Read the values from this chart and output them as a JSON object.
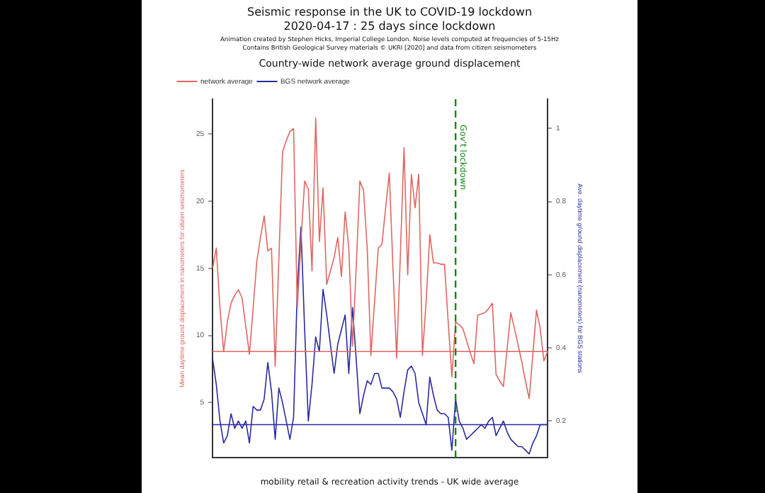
{
  "chart_data": {
    "type": "line",
    "title": "Seismic response in the UK to COVID-19 lockdown",
    "subtitle": "2020-04-17 : 25 days since lockdown",
    "annotations": [
      "Animation created by Stephen Hicks, Imperial College London. Noise levels computed at frequencies of 5-15Hz",
      "Contains British Geological Survey materials © UKRI [2020] and data from citizen seismometers",
      "Country-wide network average ground displacement",
      "mobility retail & recreation activity trends - UK wide average"
    ],
    "ylabel": "Mean daytime ground displacement in nanometers for citizen seismometers",
    "y2label": "Ave. daytime ground displacement (nanometers) for BGS stations",
    "categories": [
      null,
      null,
      null,
      null,
      null,
      null,
      null,
      null,
      null,
      null,
      null,
      null,
      null,
      null,
      null,
      null,
      null,
      null,
      null,
      null,
      null,
      null,
      null,
      null,
      null,
      null,
      null,
      null,
      null,
      null,
      null,
      null,
      null,
      null,
      null,
      null,
      null,
      null,
      null,
      null,
      null,
      null,
      null,
      null,
      null,
      null,
      null,
      null,
      null,
      null,
      null,
      null,
      null,
      null,
      null,
      null,
      null,
      null,
      null,
      null,
      null,
      null,
      null,
      null,
      null,
      null,
      null,
      null,
      null,
      null,
      null,
      null,
      null,
      null,
      null,
      null,
      null,
      null,
      null,
      null,
      null,
      null,
      null,
      null,
      null,
      null,
      null,
      null,
      null,
      null,
      null,
      null
    ],
    "ylim": [
      0.9,
      27.6
    ],
    "yticks": [
      5,
      10,
      15,
      20,
      25
    ],
    "y2lim": [
      0.1,
      1.08
    ],
    "y2ticks": [
      0.2,
      0.4,
      0.6,
      0.8,
      1.0
    ],
    "legend": "top left",
    "marker": "none",
    "line_style": "solid",
    "series": [
      {
        "name": "network average",
        "color": "#e06660",
        "values": [
          15,
          16.5,
          12,
          8.8,
          11,
          12.4,
          13,
          13.4,
          12.8,
          10.7,
          8.6,
          12,
          15.5,
          17.3,
          18.9,
          16.3,
          16.5,
          7.7,
          15.7,
          23.7,
          24.5,
          25.2,
          25.4,
          12,
          17,
          21.5,
          20.9,
          14.8,
          26.2,
          17,
          21,
          13.8,
          14.8,
          15.8,
          17.3,
          14.4,
          19.2,
          16.5,
          9.2,
          15,
          21.5,
          20.8,
          16.5,
          8.5,
          12.5,
          16.5,
          16.8,
          19.5,
          22.1,
          15,
          8.3,
          16,
          24,
          14.5,
          22,
          19.5,
          22,
          8.5,
          12.5,
          17.5,
          15.4,
          15.4,
          15.3,
          15.3,
          11,
          6.9,
          11,
          10.8,
          10.5,
          9.6,
          8.7,
          7.9,
          11.5,
          11.6,
          11.7,
          12,
          12.4,
          7.1,
          6.6,
          6.2,
          9,
          11.7,
          10.5,
          9.3,
          8,
          6.6,
          5.3,
          8.6,
          11.9,
          10.5,
          8.1,
          8.8
        ]
      },
      {
        "name": "BGS network average",
        "color": "#2a2aa0",
        "axis": "y2",
        "values": [
          0.37,
          0.3,
          0.2,
          0.14,
          0.16,
          0.22,
          0.18,
          0.2,
          0.18,
          0.2,
          0.14,
          0.24,
          0.23,
          0.23,
          0.26,
          0.36,
          0.28,
          0.15,
          0.29,
          0.25,
          0.2,
          0.15,
          0.21,
          0.56,
          0.73,
          0.45,
          0.2,
          0.3,
          0.43,
          0.39,
          0.56,
          0.49,
          0.41,
          0.33,
          0.41,
          0.45,
          0.49,
          0.33,
          0.51,
          0.37,
          0.22,
          0.27,
          0.31,
          0.3,
          0.33,
          0.33,
          0.29,
          0.29,
          0.29,
          0.28,
          0.26,
          0.21,
          0.28,
          0.34,
          0.35,
          0.33,
          0.25,
          0.22,
          0.19,
          0.32,
          0.27,
          0.23,
          0.22,
          0.22,
          0.21,
          0.12,
          0.26,
          0.2,
          0.18,
          0.15,
          0.16,
          0.17,
          0.18,
          0.19,
          0.18,
          0.2,
          0.21,
          0.16,
          0.18,
          0.2,
          0.17,
          0.15,
          0.14,
          0.13,
          0.13,
          0.12,
          0.11,
          0.14,
          0.16,
          0.19,
          0.19,
          0.19
        ]
      }
    ],
    "ref_lines": [
      {
        "axis": "y",
        "value": 8.8,
        "color": "#e06660"
      },
      {
        "axis": "y2",
        "value": 0.19,
        "color": "#2a2aa0"
      },
      {
        "axis": "x",
        "label": "Gov't lockdown",
        "color": "#118811",
        "line_style": "dashed"
      }
    ]
  }
}
